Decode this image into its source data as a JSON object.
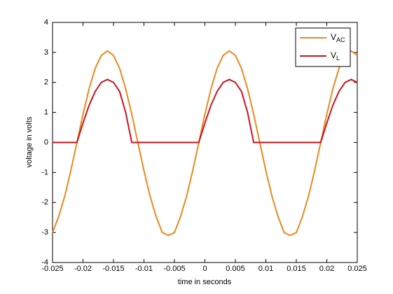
{
  "chart_data": {
    "type": "line",
    "x_label": "time in seconds",
    "y_label": "voltage in volts",
    "x": [
      -0.025,
      -0.024,
      -0.023,
      -0.022,
      -0.021,
      -0.02,
      -0.019,
      -0.018,
      -0.017,
      -0.016,
      -0.015,
      -0.014,
      -0.013,
      -0.012,
      -0.011,
      -0.01,
      -0.009,
      -0.008,
      -0.007,
      -0.006,
      -0.005,
      -0.004,
      -0.003,
      -0.002,
      -0.001,
      0,
      0.001,
      0.002,
      0.003,
      0.004,
      0.005,
      0.006,
      0.007,
      0.008,
      0.009,
      0.01,
      0.011,
      0.012,
      0.013,
      0.014,
      0.015,
      0.016,
      0.017,
      0.018,
      0.019,
      0.02,
      0.021,
      0.022,
      0.023,
      0.024,
      0.025
    ],
    "series": [
      {
        "name": "VAC",
        "color": "#e8891f",
        "values": [
          -3.0,
          -2.47,
          -1.79,
          -0.94,
          0,
          0.94,
          1.79,
          2.47,
          2.9,
          3.05,
          2.9,
          2.47,
          1.79,
          0.94,
          0,
          -0.94,
          -1.79,
          -2.47,
          -3.0,
          -3.1,
          -3.0,
          -2.47,
          -1.79,
          -0.94,
          0,
          0.94,
          1.79,
          2.47,
          2.9,
          3.05,
          2.9,
          2.47,
          1.79,
          0.94,
          0,
          -0.94,
          -1.79,
          -2.47,
          -3.0,
          -3.1,
          -3.0,
          -2.47,
          -1.79,
          -0.94,
          0,
          0.94,
          1.79,
          2.47,
          2.9,
          3.05,
          2.9
        ]
      },
      {
        "name": "VL",
        "color": "#c8141e",
        "values": [
          0,
          0,
          0,
          0,
          0,
          0.65,
          1.24,
          1.7,
          2.0,
          2.1,
          2.0,
          1.7,
          1.0,
          0,
          0,
          0,
          0,
          0,
          0,
          0,
          0,
          0,
          0,
          0,
          0,
          0.65,
          1.24,
          1.7,
          2.0,
          2.1,
          2.0,
          1.7,
          1.0,
          0,
          0,
          0,
          0,
          0,
          0,
          0,
          0,
          0,
          0,
          0,
          0,
          0.65,
          1.24,
          1.7,
          2.0,
          2.1,
          2.0
        ]
      }
    ],
    "xlim": [
      -0.025,
      0.025
    ],
    "xticks": [
      -0.025,
      -0.02,
      -0.015,
      -0.01,
      -0.005,
      0,
      0.005,
      0.01,
      0.015,
      0.02,
      0.025
    ],
    "ylim": [
      -4,
      4
    ],
    "yticks": [
      -4,
      -3,
      -2,
      -1,
      0,
      1,
      2,
      3,
      4
    ],
    "legend": "upper-right",
    "grid": false
  }
}
